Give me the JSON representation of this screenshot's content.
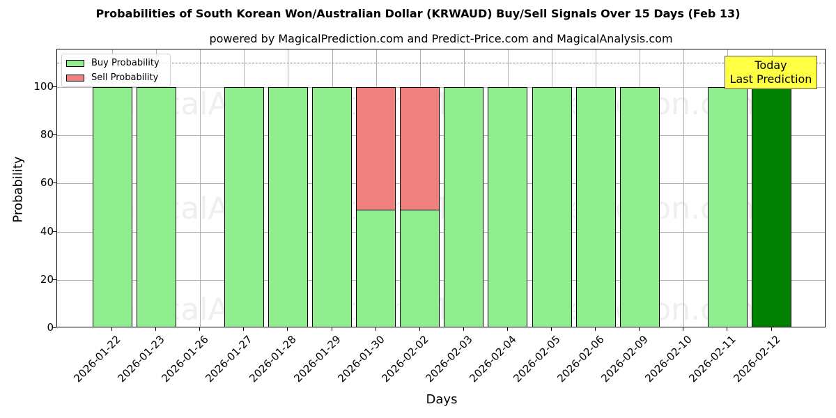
{
  "header": {
    "title": "Probabilities of South Korean Won/Australian Dollar (KRWAUD) Buy/Sell Signals Over 15 Days (Feb 13)",
    "subtitle": "powered by MagicalPrediction.com and Predict-Price.com and MagicalAnalysis.com"
  },
  "legend": {
    "buy_label": "Buy Probability",
    "sell_label": "Sell Probability"
  },
  "annotation": {
    "line1": "Today",
    "line2": "Last Prediction"
  },
  "watermarks": [
    "MagicalAnalysis.com",
    "MagicalPrediction.com"
  ],
  "colors": {
    "buy": "#90ee90",
    "sell": "#f08080",
    "today_buy": "#008000",
    "annotation_bg": "#ffff44"
  },
  "chart_data": {
    "type": "bar",
    "stacked": true,
    "title": "Probabilities of South Korean Won/Australian Dollar (KRWAUD) Buy/Sell Signals Over 15 Days (Feb 13)",
    "subtitle": "powered by MagicalPrediction.com and Predict-Price.com and MagicalAnalysis.com",
    "xlabel": "Days",
    "ylabel": "Probability",
    "ylim": [
      0,
      115.6
    ],
    "yticks": [
      0,
      20,
      40,
      60,
      80,
      100
    ],
    "grid": true,
    "legend_position": "upper left",
    "reference_line": {
      "y": 110,
      "style": "dashed",
      "color": "#808080"
    },
    "categories": [
      "2026-01-22",
      "2026-01-23",
      "2026-01-26",
      "2026-01-27",
      "2026-01-28",
      "2026-01-29",
      "2026-01-30",
      "2026-02-02",
      "2026-02-03",
      "2026-02-04",
      "2026-02-05",
      "2026-02-06",
      "2026-02-09",
      "2026-02-10",
      "2026-02-11",
      "2026-02-12"
    ],
    "series": [
      {
        "name": "Buy Probability",
        "values": [
          100,
          100,
          0,
          100,
          100,
          100,
          49,
          49,
          100,
          100,
          100,
          100,
          100,
          0,
          100,
          100
        ]
      },
      {
        "name": "Sell Probability",
        "values": [
          0,
          0,
          0,
          0,
          0,
          0,
          51,
          51,
          0,
          0,
          0,
          0,
          0,
          0,
          0,
          0
        ]
      }
    ],
    "highlight": {
      "category": "2026-02-12",
      "label": "Today\nLast Prediction",
      "color": "#008000"
    }
  }
}
